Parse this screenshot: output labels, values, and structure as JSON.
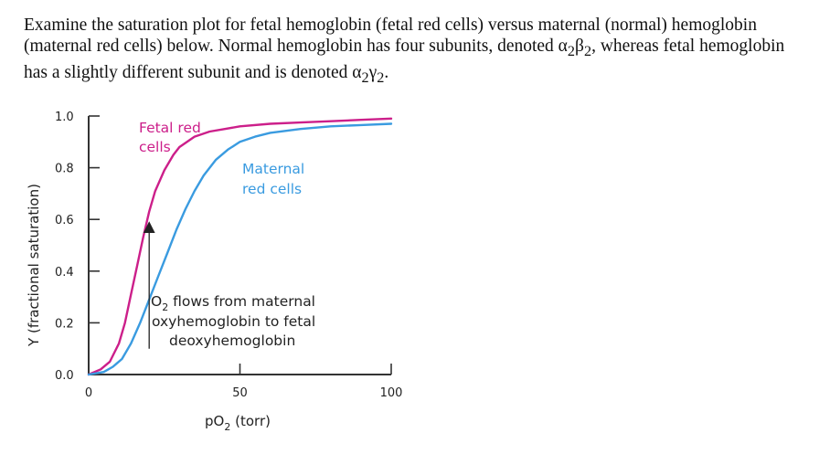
{
  "question": {
    "p1": "Examine the saturation plot for fetal hemoglobin (fetal red cells) versus maternal (normal) hemoglobin (maternal red cells) below. Normal hemoglobin has four subunits, denoted ",
    "alpha": "α",
    "sub2a": "2",
    "beta": "β",
    "sub2b": "2",
    "p2": ", whereas fetal hemoglobin has a slightly different subunit and is denoted ",
    "alpha2": "α",
    "sub2c": "2",
    "gamma": "γ",
    "sub2d": "2",
    "p3": "."
  },
  "chart_data": {
    "type": "line",
    "xlabel_main": "pO",
    "xlabel_sub": "2",
    "xlabel_unit": " (torr)",
    "ylabel": "Y (fractional saturation)",
    "xlim": [
      0,
      100
    ],
    "ylim": [
      0,
      1.0
    ],
    "x_ticks": [
      0,
      50,
      100
    ],
    "y_ticks": [
      0.0,
      0.2,
      0.4,
      0.6,
      0.8,
      1.0
    ],
    "y_tick_labels": [
      "0.0",
      "0.2",
      "0.4",
      "0.6",
      "0.8",
      "1.0"
    ],
    "colors": {
      "fetal": "#cc1f8a",
      "maternal": "#3a9be0",
      "axis": "#333333"
    },
    "series": [
      {
        "key": "fetal",
        "label_line1": "Fetal red",
        "label_line2": "cells",
        "x": [
          0,
          4,
          7,
          10,
          12,
          14,
          16,
          18,
          20,
          22,
          25,
          28,
          30,
          35,
          40,
          45,
          50,
          60,
          70,
          80,
          90,
          100
        ],
        "y": [
          0.0,
          0.02,
          0.05,
          0.12,
          0.2,
          0.31,
          0.42,
          0.53,
          0.63,
          0.71,
          0.79,
          0.85,
          0.88,
          0.92,
          0.94,
          0.95,
          0.96,
          0.97,
          0.975,
          0.98,
          0.985,
          0.99
        ]
      },
      {
        "key": "maternal",
        "label_line1": "Maternal",
        "label_line2": "red cells",
        "x": [
          0,
          5,
          8,
          11,
          14,
          17,
          20,
          23,
          26,
          29,
          32,
          35,
          38,
          42,
          46,
          50,
          55,
          60,
          70,
          80,
          90,
          100
        ],
        "y": [
          0.0,
          0.01,
          0.03,
          0.06,
          0.12,
          0.2,
          0.29,
          0.38,
          0.47,
          0.56,
          0.64,
          0.71,
          0.77,
          0.83,
          0.87,
          0.9,
          0.92,
          0.935,
          0.95,
          0.96,
          0.965,
          0.97
        ]
      }
    ],
    "annotation": {
      "line1_a": "O",
      "line1_sub": "2",
      "line1_b": " flows from maternal",
      "line2": "oxyhemoglobin to fetal",
      "line3": "deoxyhemoglobin",
      "arrow_x": 20,
      "arrow_y_from": 0.1,
      "arrow_y_to": 0.57
    }
  }
}
